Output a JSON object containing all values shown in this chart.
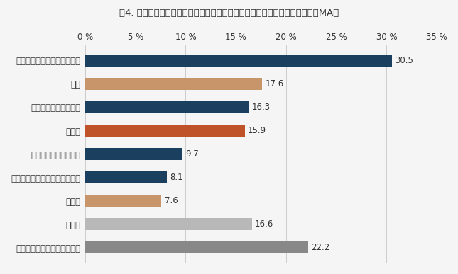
{
  "title": "図4. 能登半島地震を最初に得た情報以外にどのような方法で情報を得たか（MA）",
  "categories": [
    "サイトの閲覧（ＳＮＳ除く）",
    "新聞",
    "ＳＮＳ（知人を除く）",
    "テレビ",
    "スマホの防災系アプリ",
    "エリアメール、緊急速報メール",
    "ラジオ",
    "その他",
    "最初以外の情報を得ていない"
  ],
  "values": [
    30.5,
    17.6,
    16.3,
    15.9,
    9.7,
    8.1,
    7.6,
    16.6,
    22.2
  ],
  "colors": [
    "#1b3f5e",
    "#c8956a",
    "#1b3f5e",
    "#c0522a",
    "#1b3f5e",
    "#1b3f5e",
    "#c8956a",
    "#b8b8b8",
    "#888888"
  ],
  "xlim": [
    0,
    35
  ],
  "xticks": [
    0,
    5,
    10,
    15,
    20,
    25,
    30,
    35
  ],
  "xtick_labels": [
    "0 %",
    "5 %",
    "10 %",
    "15 %",
    "20 %",
    "25 %",
    "30 %",
    "35 %"
  ],
  "bar_height": 0.5,
  "title_fontsize": 9.5,
  "label_fontsize": 8.5,
  "value_fontsize": 8.5,
  "tick_fontsize": 8.5,
  "background_color": "#f5f5f5"
}
